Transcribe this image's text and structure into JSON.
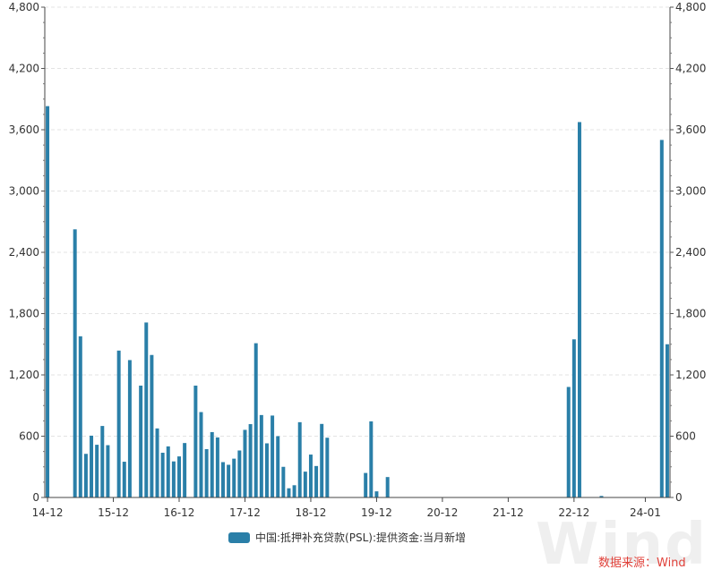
{
  "chart_data": {
    "type": "bar",
    "title": "",
    "xlabel": "",
    "ylabel": "",
    "ylim": [
      0,
      4800
    ],
    "yticks": [
      0,
      600,
      1200,
      1800,
      2400,
      3000,
      3600,
      4200,
      4800
    ],
    "ytick_labels": [
      "0",
      "600",
      "1,200",
      "1,800",
      "2,400",
      "3,000",
      "3,600",
      "4,200",
      "4,800"
    ],
    "xtick_labels": [
      "14-12",
      "15-12",
      "16-12",
      "17-12",
      "18-12",
      "19-12",
      "20-12",
      "21-12",
      "22-12",
      "24-01"
    ],
    "xtick_label_index": [
      0,
      12,
      24,
      36,
      48,
      60,
      72,
      84,
      96,
      109
    ],
    "grid": true,
    "legend_position": "bottom",
    "series": [
      {
        "name": "中国:抵押补充贷款(PSL):提供资金:当月新增",
        "color": "#2a7fa8",
        "values": [
          3831,
          0,
          0,
          0,
          0,
          2625,
          1578,
          427,
          605,
          516,
          700,
          512,
          0,
          1438,
          350,
          1345,
          0,
          1095,
          1713,
          1395,
          676,
          438,
          500,
          353,
          402,
          533,
          0,
          1095,
          836,
          473,
          640,
          588,
          346,
          320,
          380,
          460,
          662,
          718,
          1510,
          807,
          530,
          802,
          600,
          300,
          90,
          120,
          737,
          253,
          420,
          308,
          720,
          585,
          0,
          0,
          0,
          0,
          0,
          0,
          240,
          745,
          60,
          0,
          200,
          0,
          0,
          0,
          0,
          0,
          0,
          0,
          0,
          0,
          0,
          0,
          0,
          0,
          0,
          0,
          0,
          0,
          0,
          0,
          0,
          0,
          0,
          0,
          0,
          0,
          0,
          0,
          0,
          0,
          0,
          0,
          0,
          1082,
          1548,
          3675,
          0,
          0,
          0,
          15,
          0,
          0,
          0,
          0,
          0,
          0,
          0,
          0,
          0,
          0,
          3500,
          1500
        ]
      }
    ]
  },
  "legend": {
    "label": "中国:抵押补充贷款(PSL):提供资金:当月新增"
  },
  "source_text": "数据来源：Wind",
  "watermark_text": "Wind"
}
